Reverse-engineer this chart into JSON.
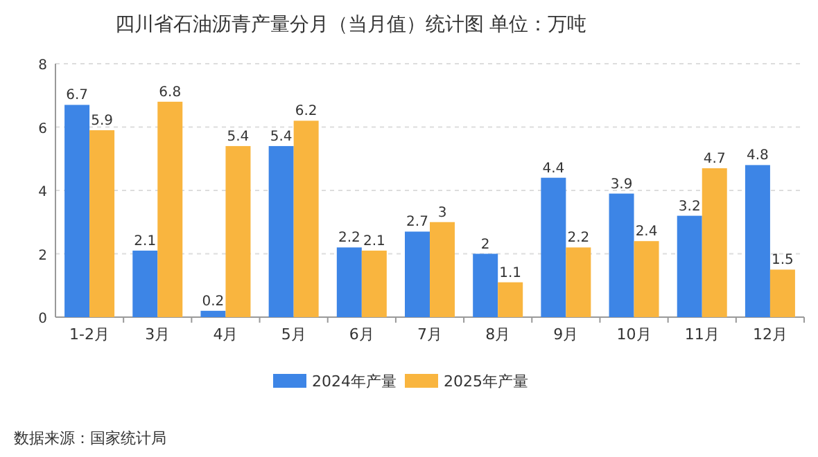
{
  "chart_data": {
    "type": "bar",
    "title": "四川省石油沥青产量分月（当月值）统计图 单位：万吨",
    "categories": [
      "1-2月",
      "3月",
      "4月",
      "5月",
      "6月",
      "7月",
      "8月",
      "9月",
      "10月",
      "11月",
      "12月"
    ],
    "series": [
      {
        "name": "2024年产量",
        "color": "#3d85e6",
        "values": [
          6.7,
          2.1,
          0.2,
          5.4,
          2.2,
          2.7,
          2,
          4.4,
          3.9,
          3.2,
          4.8
        ]
      },
      {
        "name": "2025年产量",
        "color": "#f9b53f",
        "values": [
          5.9,
          6.8,
          5.4,
          6.2,
          2.1,
          3,
          1.1,
          2.2,
          2.4,
          4.7,
          1.5
        ]
      }
    ],
    "ylim": [
      0,
      8
    ],
    "yticks": [
      0,
      2,
      4,
      6,
      8
    ],
    "grid": "y",
    "legend": "bottom",
    "data_labels": true,
    "annotations": [
      "数据来源：国家统计局"
    ]
  }
}
